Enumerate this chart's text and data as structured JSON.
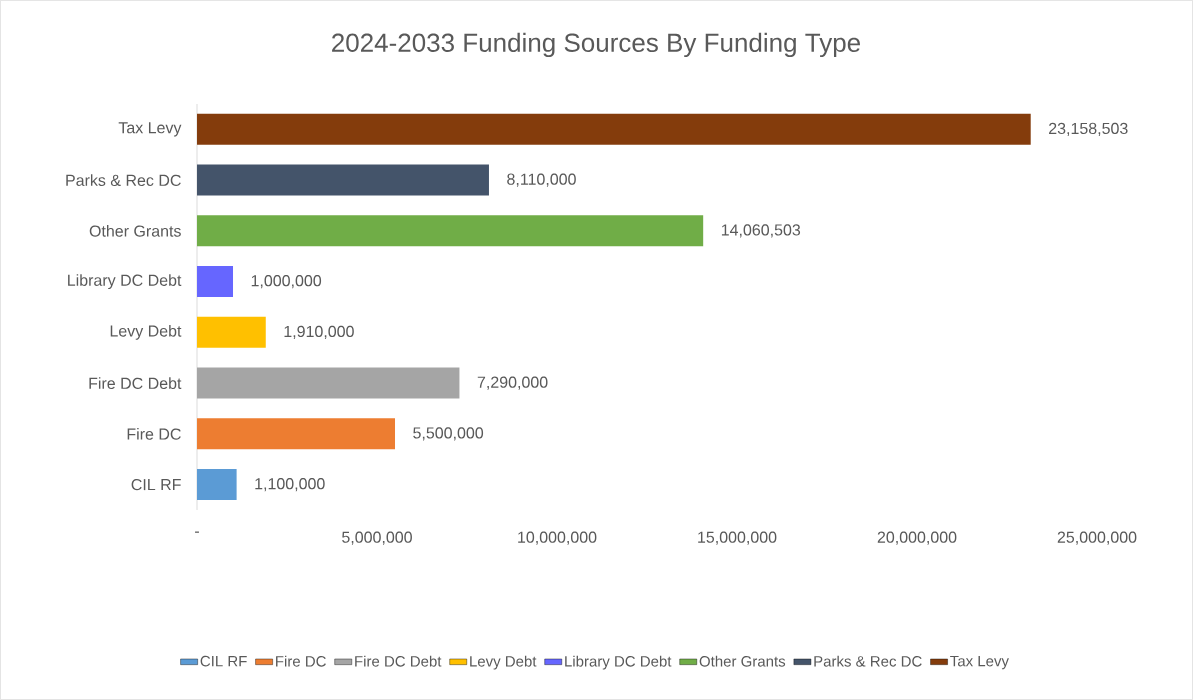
{
  "chart_data": {
    "type": "bar",
    "orientation": "horizontal",
    "title": "2024-2033 Funding Sources By Funding Type",
    "categories": [
      "Tax Levy",
      "Parks & Rec DC",
      "Other Grants",
      "Library DC Debt",
      "Levy Debt",
      "Fire DC Debt",
      "Fire DC",
      "CIL RF"
    ],
    "series": [
      {
        "name": "CIL RF",
        "color": "#5b9bd5",
        "values": [
          null,
          null,
          null,
          null,
          null,
          null,
          null,
          1100000
        ],
        "value_labels": [
          null,
          null,
          null,
          null,
          null,
          null,
          null,
          "1,100,000"
        ]
      },
      {
        "name": "Fire DC",
        "color": "#ed7d31",
        "values": [
          null,
          null,
          null,
          null,
          null,
          null,
          5500000,
          null
        ],
        "value_labels": [
          null,
          null,
          null,
          null,
          null,
          null,
          "5,500,000",
          null
        ]
      },
      {
        "name": "Fire DC Debt",
        "color": "#a5a5a5",
        "values": [
          null,
          null,
          null,
          null,
          null,
          7290000,
          null,
          null
        ],
        "value_labels": [
          null,
          null,
          null,
          null,
          null,
          "7,290,000",
          null,
          null
        ]
      },
      {
        "name": "Levy Debt",
        "color": "#ffc000",
        "values": [
          null,
          null,
          null,
          null,
          1910000,
          null,
          null,
          null
        ],
        "value_labels": [
          null,
          null,
          null,
          null,
          "1,910,000",
          null,
          null,
          null
        ]
      },
      {
        "name": "Library DC Debt",
        "color": "#6666ff",
        "values": [
          null,
          null,
          null,
          1000000,
          null,
          null,
          null,
          null
        ],
        "value_labels": [
          null,
          null,
          null,
          "1,000,000",
          null,
          null,
          null,
          null
        ]
      },
      {
        "name": "Other Grants",
        "color": "#70ad47",
        "values": [
          null,
          null,
          14060503,
          null,
          null,
          null,
          null,
          null
        ],
        "value_labels": [
          null,
          null,
          "14,060,503",
          null,
          null,
          null,
          null,
          null
        ]
      },
      {
        "name": "Parks & Rec DC",
        "color": "#44546a",
        "values": [
          null,
          8110000,
          null,
          null,
          null,
          null,
          null,
          null
        ],
        "value_labels": [
          null,
          "8,110,000",
          null,
          null,
          null,
          null,
          null,
          null
        ]
      },
      {
        "name": "Tax Levy",
        "color": "#843c0c",
        "values": [
          23158503,
          null,
          null,
          null,
          null,
          null,
          null,
          null
        ],
        "value_labels": [
          "23,158,503",
          null,
          null,
          null,
          null,
          null,
          null,
          null
        ]
      }
    ],
    "xlim": [
      0,
      25000000
    ],
    "xticks": [
      {
        "value": 0,
        "label": "-"
      },
      {
        "value": 5000000,
        "label": "5,000,000"
      },
      {
        "value": 10000000,
        "label": "10,000,000"
      },
      {
        "value": 15000000,
        "label": "15,000,000"
      },
      {
        "value": 20000000,
        "label": "20,000,000"
      },
      {
        "value": 25000000,
        "label": "25,000,000"
      }
    ],
    "grid": false,
    "legend": "bottom"
  }
}
